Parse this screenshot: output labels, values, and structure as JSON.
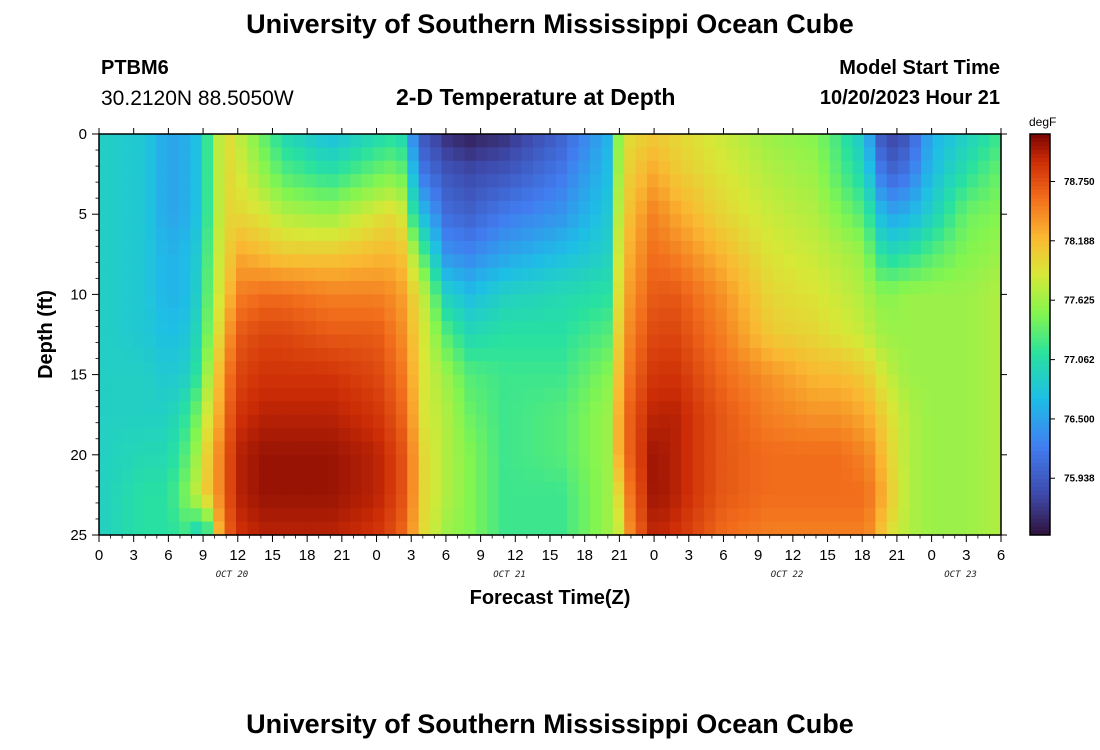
{
  "header": {
    "title": "University of Southern Mississippi Ocean Cube",
    "station_id": "PTBM6",
    "coords": "30.2120N  88.5050W",
    "plot_title": "2-D Temperature at Depth",
    "start_label": "Model Start Time",
    "start_value": "10/20/2023 Hour 21"
  },
  "footer": {
    "title": "University of Southern Mississippi Ocean Cube"
  },
  "chart_data": {
    "type": "heatmap",
    "title": "2-D Temperature at Depth",
    "xlabel": "Forecast Time(Z)",
    "ylabel": "Depth (ft)",
    "units": "degF",
    "x_range_hours": [
      0,
      78
    ],
    "x_ticks": [
      "0",
      "3",
      "6",
      "9",
      "12",
      "15",
      "18",
      "21",
      "0",
      "3",
      "6",
      "9",
      "12",
      "15",
      "18",
      "21",
      "0",
      "3",
      "6",
      "9",
      "12",
      "15",
      "18",
      "21",
      "0",
      "3",
      "6"
    ],
    "date_labels": [
      {
        "label": "OCT 20",
        "hour": 11.5
      },
      {
        "label": "OCT 21",
        "hour": 35.5
      },
      {
        "label": "OCT 22",
        "hour": 59.5
      },
      {
        "label": "OCT 23",
        "hour": 74.5
      }
    ],
    "y_ticks": [
      "0",
      "5",
      "10",
      "15",
      "20",
      "25"
    ],
    "ylim": [
      0,
      25
    ],
    "colorbar": {
      "range": [
        75.4,
        79.2
      ],
      "ticks": [
        "78.750",
        "78.188",
        "77.625",
        "77.062",
        "76.500",
        "75.938"
      ]
    },
    "depths_ft": [
      0,
      2.5,
      5,
      7.5,
      10,
      12.5,
      15,
      17.5,
      20,
      22.5,
      25
    ],
    "hours": [
      0,
      4,
      6,
      8,
      9,
      10,
      11,
      12,
      14,
      16,
      20,
      24,
      26,
      27,
      28,
      30,
      32,
      35,
      40,
      44,
      45,
      46,
      48,
      50,
      54,
      58,
      62,
      64,
      66,
      67,
      68,
      70,
      72,
      75,
      78
    ],
    "temps_degF": [
      [
        76.9,
        76.9,
        76.9,
        76.9,
        76.9,
        76.9,
        76.9,
        76.9,
        76.9,
        76.9,
        76.9
      ],
      [
        76.8,
        76.8,
        76.8,
        76.8,
        76.8,
        76.8,
        76.9,
        76.9,
        77.0,
        77.1,
        77.1
      ],
      [
        76.5,
        76.5,
        76.5,
        76.6,
        76.6,
        76.7,
        76.8,
        76.9,
        77.0,
        77.1,
        77.1
      ],
      [
        76.6,
        76.6,
        76.6,
        76.7,
        76.7,
        76.8,
        76.9,
        77.2,
        77.4,
        77.6,
        77.2
      ],
      [
        76.9,
        76.9,
        76.9,
        77.0,
        77.1,
        77.2,
        77.4,
        77.7,
        77.9,
        78.0,
        76.5
      ],
      [
        77.6,
        77.6,
        77.6,
        77.7,
        77.7,
        77.8,
        78.0,
        78.1,
        78.3,
        78.3,
        78.0
      ],
      [
        78.0,
        78.0,
        78.0,
        78.0,
        78.1,
        78.3,
        78.5,
        78.6,
        78.7,
        78.7,
        78.6
      ],
      [
        77.8,
        77.9,
        78.0,
        78.3,
        78.5,
        78.7,
        78.8,
        78.9,
        79.0,
        79.0,
        78.9
      ],
      [
        77.4,
        77.6,
        77.9,
        78.2,
        78.6,
        78.8,
        78.9,
        79.0,
        79.1,
        79.1,
        79.0
      ],
      [
        77.0,
        77.3,
        77.7,
        78.1,
        78.6,
        78.8,
        78.9,
        79.0,
        79.1,
        79.1,
        79.0
      ],
      [
        76.7,
        77.1,
        77.6,
        78.1,
        78.5,
        78.7,
        78.9,
        79.0,
        79.1,
        79.1,
        79.0
      ],
      [
        77.0,
        77.4,
        77.9,
        78.2,
        78.5,
        78.7,
        78.8,
        78.9,
        79.0,
        79.0,
        78.9
      ],
      [
        77.1,
        77.5,
        78.0,
        78.2,
        78.4,
        78.5,
        78.6,
        78.7,
        78.8,
        78.8,
        78.7
      ],
      [
        76.4,
        76.8,
        77.2,
        77.8,
        78.1,
        78.2,
        78.3,
        78.4,
        78.5,
        78.5,
        78.4
      ],
      [
        75.9,
        76.2,
        76.7,
        77.3,
        77.8,
        77.9,
        77.9,
        77.9,
        78.0,
        78.0,
        78.0
      ],
      [
        75.6,
        75.9,
        76.1,
        76.4,
        76.9,
        77.3,
        77.6,
        77.7,
        77.7,
        77.7,
        77.6
      ],
      [
        75.5,
        75.8,
        76.0,
        76.3,
        76.7,
        77.0,
        77.3,
        77.4,
        77.5,
        77.5,
        77.5
      ],
      [
        75.6,
        75.9,
        76.2,
        76.5,
        76.9,
        77.1,
        77.2,
        77.2,
        77.2,
        77.2,
        77.2
      ],
      [
        76.0,
        76.2,
        76.4,
        76.7,
        77.0,
        77.1,
        77.2,
        77.3,
        77.3,
        77.2,
        77.2
      ],
      [
        76.6,
        76.7,
        76.8,
        76.9,
        77.1,
        77.3,
        77.5,
        77.6,
        77.6,
        77.6,
        77.6
      ],
      [
        77.6,
        77.7,
        77.8,
        77.9,
        78.0,
        78.1,
        78.2,
        78.3,
        78.3,
        78.0,
        77.8
      ],
      [
        78.0,
        78.1,
        78.2,
        78.3,
        78.4,
        78.5,
        78.6,
        78.7,
        78.7,
        78.6,
        78.5
      ],
      [
        78.1,
        78.3,
        78.5,
        78.6,
        78.7,
        78.8,
        78.9,
        79.0,
        79.1,
        79.1,
        79.0
      ],
      [
        78.0,
        78.1,
        78.3,
        78.5,
        78.7,
        78.8,
        78.9,
        79.0,
        79.0,
        79.0,
        78.9
      ],
      [
        77.8,
        77.9,
        78.0,
        78.2,
        78.4,
        78.5,
        78.6,
        78.7,
        78.7,
        78.7,
        78.6
      ],
      [
        77.6,
        77.7,
        77.8,
        77.9,
        78.0,
        78.1,
        78.4,
        78.5,
        78.6,
        78.6,
        78.5
      ],
      [
        77.5,
        77.6,
        77.7,
        77.8,
        77.9,
        78.0,
        78.2,
        78.4,
        78.6,
        78.6,
        78.5
      ],
      [
        77.2,
        77.3,
        77.5,
        77.7,
        77.8,
        77.9,
        78.2,
        78.4,
        78.6,
        78.6,
        78.5
      ],
      [
        76.8,
        77.0,
        77.3,
        77.6,
        77.7,
        77.8,
        78.1,
        78.3,
        78.5,
        78.6,
        78.5
      ],
      [
        76.3,
        76.6,
        77.0,
        77.3,
        77.6,
        77.7,
        78.0,
        78.2,
        78.4,
        78.5,
        78.4
      ],
      [
        75.7,
        76.0,
        76.5,
        77.0,
        77.5,
        77.6,
        77.8,
        78.0,
        78.1,
        78.2,
        78.0
      ],
      [
        75.9,
        76.2,
        76.6,
        77.1,
        77.6,
        77.6,
        77.6,
        77.7,
        77.7,
        77.7,
        77.7
      ],
      [
        76.6,
        76.7,
        76.9,
        77.3,
        77.6,
        77.6,
        77.6,
        77.6,
        77.6,
        77.6,
        77.6
      ],
      [
        76.9,
        77.1,
        77.4,
        77.5,
        77.6,
        77.6,
        77.6,
        77.6,
        77.6,
        77.6,
        77.6
      ],
      [
        77.2,
        77.4,
        77.5,
        77.6,
        77.7,
        77.7,
        77.7,
        77.7,
        77.7,
        77.7,
        77.7
      ]
    ]
  }
}
